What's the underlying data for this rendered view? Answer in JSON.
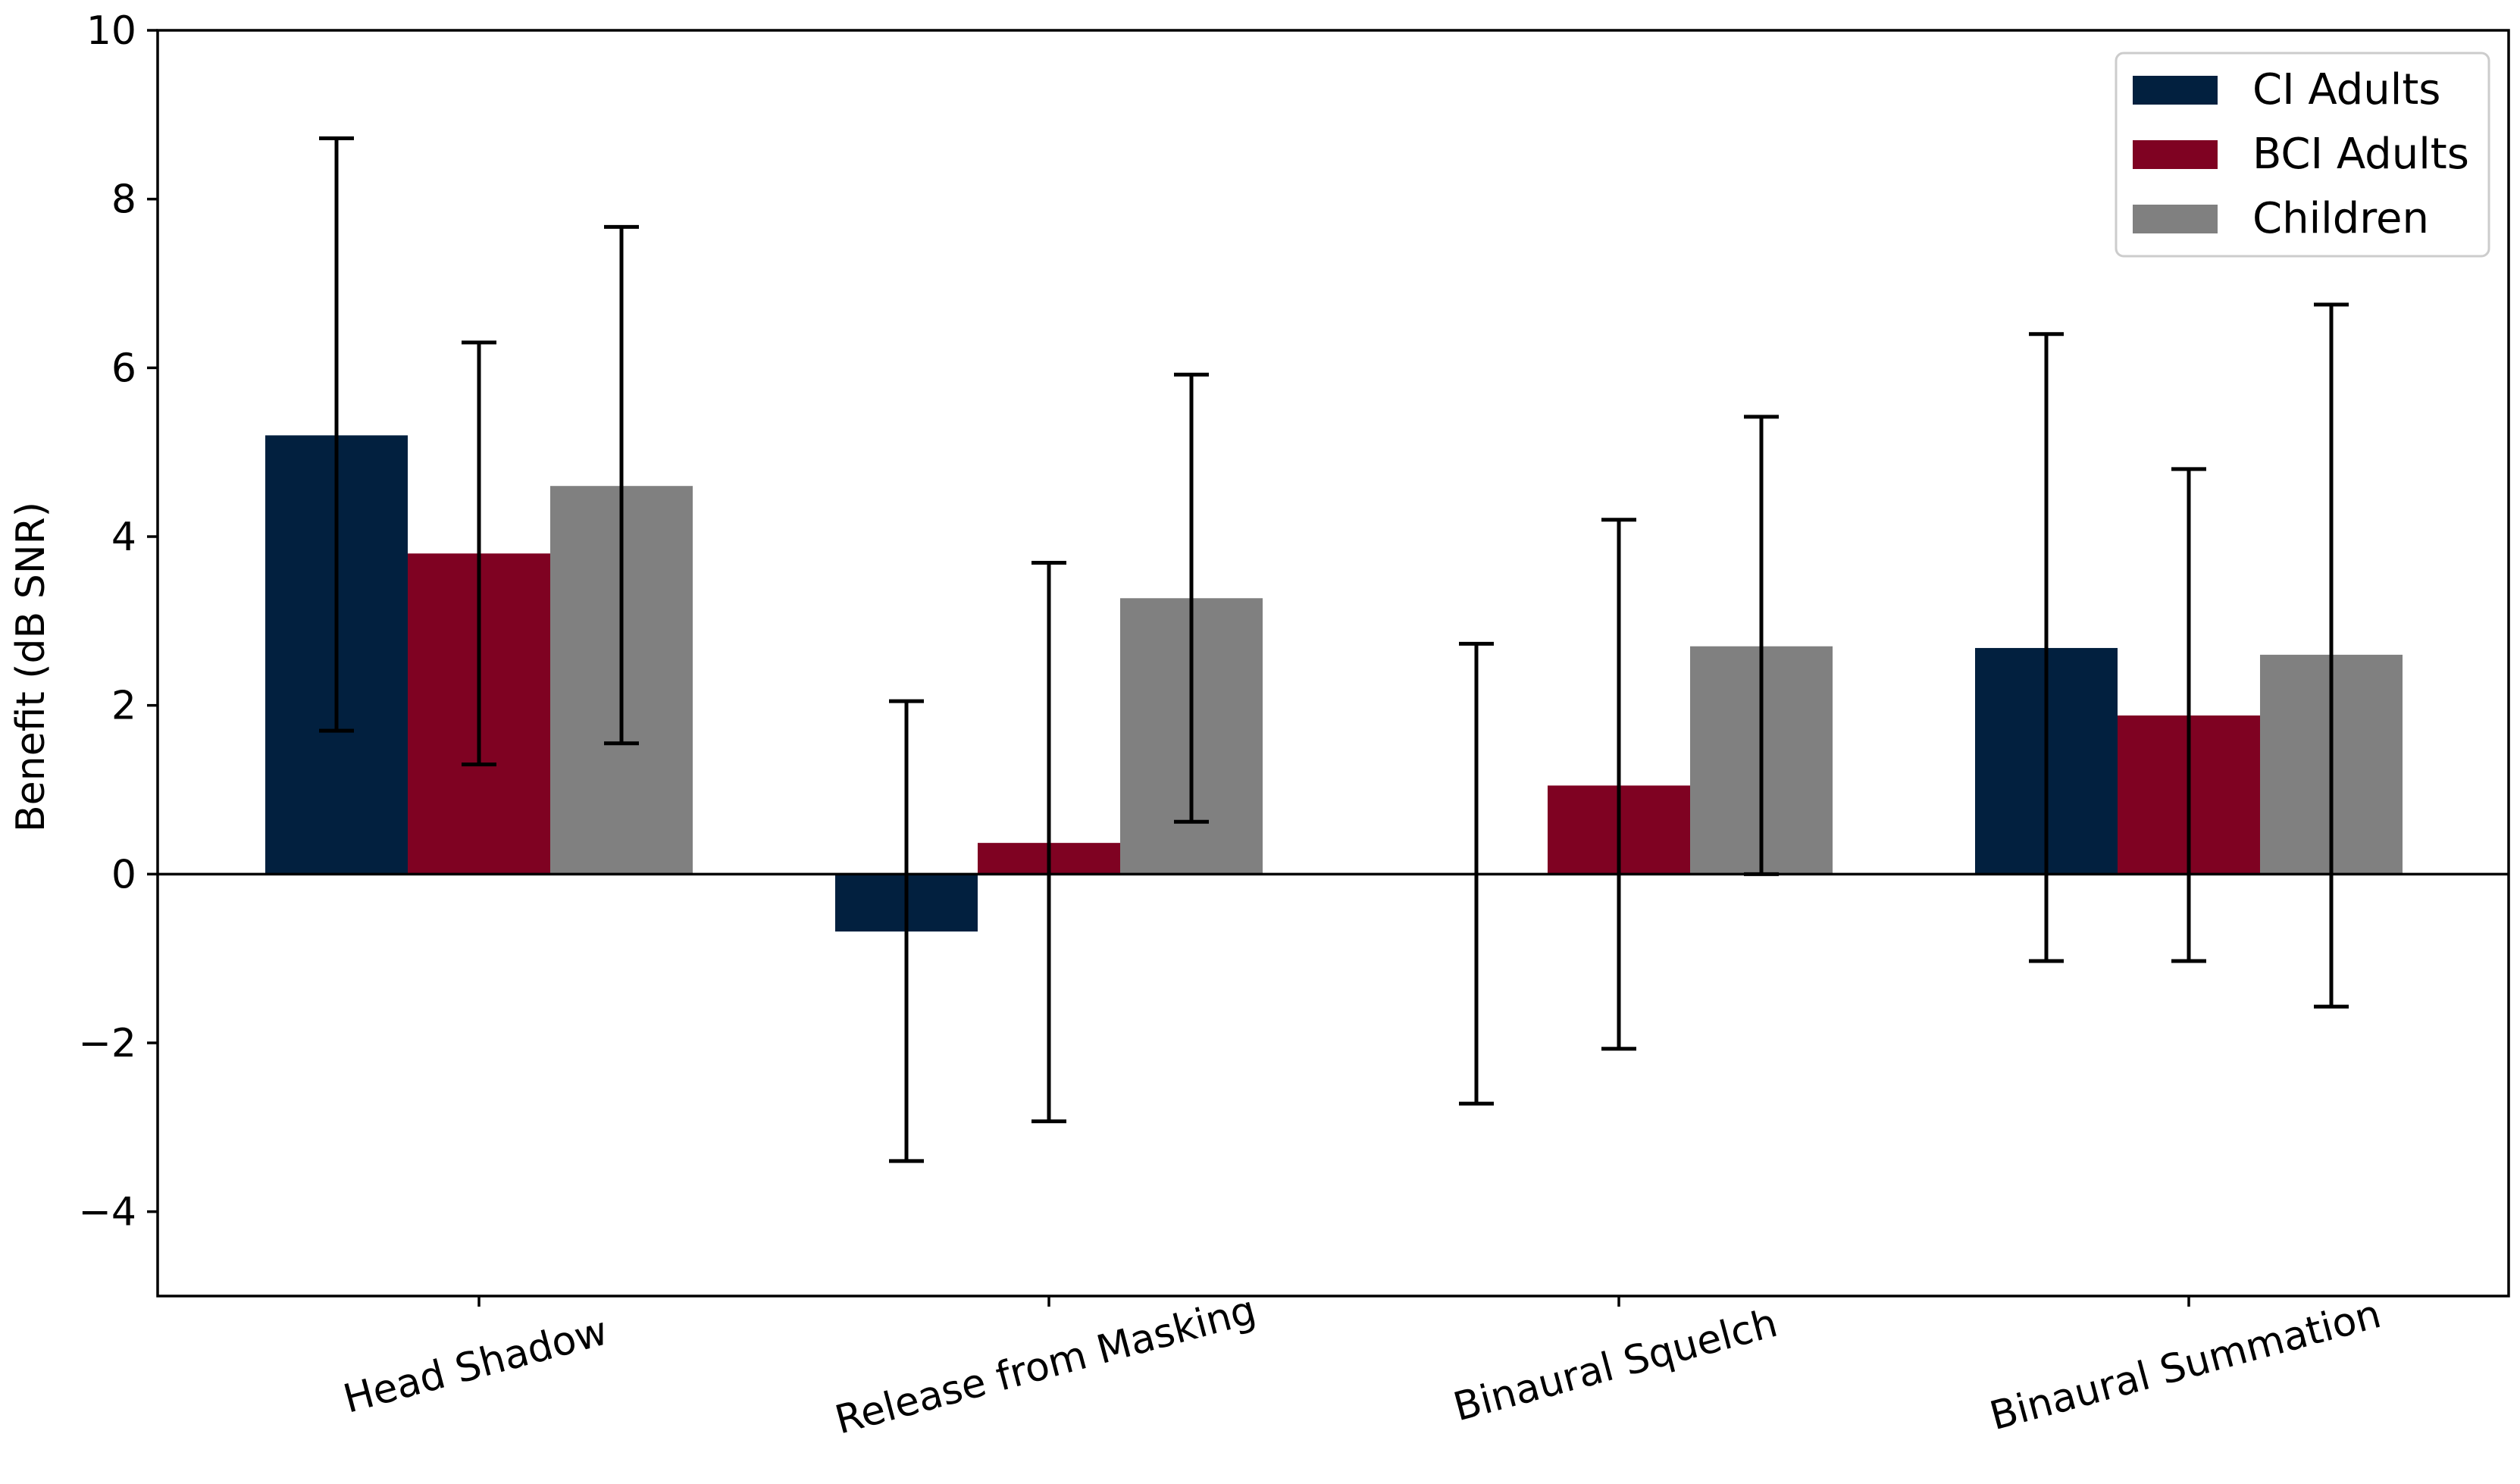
{
  "chart_data": {
    "type": "bar",
    "title": "",
    "xlabel": "",
    "ylabel": "Benefit (dB SNR)",
    "ylim": [
      -5,
      10
    ],
    "yticks": [
      -4,
      -2,
      0,
      2,
      4,
      6,
      8,
      10
    ],
    "ytick_labels": [
      "−4",
      "−2",
      "0",
      "2",
      "4",
      "6",
      "8",
      "10"
    ],
    "categories": [
      "Head Shadow",
      "Release from Masking",
      "Binaural Squelch",
      "Binaural Summation"
    ],
    "series": [
      {
        "name": "CI Adults",
        "color": "#02203f",
        "values": [
          5.2,
          -0.68,
          0.0,
          2.68
        ],
        "err_low": [
          1.7,
          -3.4,
          -2.72,
          -1.03
        ],
        "err_high": [
          8.72,
          2.05,
          2.73,
          6.4
        ]
      },
      {
        "name": "BCI Adults",
        "color": "#7f0222",
        "values": [
          3.8,
          0.37,
          1.05,
          1.88
        ],
        "err_low": [
          1.3,
          -2.93,
          -2.07,
          -1.03
        ],
        "err_high": [
          6.3,
          3.69,
          4.2,
          4.8
        ]
      },
      {
        "name": "Children",
        "color": "#808080",
        "values": [
          4.6,
          3.27,
          2.7,
          2.6
        ],
        "err_low": [
          1.55,
          0.62,
          0.0,
          -1.57
        ],
        "err_high": [
          7.67,
          5.92,
          5.42,
          6.75
        ]
      }
    ],
    "legend": {
      "placement": "top-right"
    },
    "grid": false
  }
}
